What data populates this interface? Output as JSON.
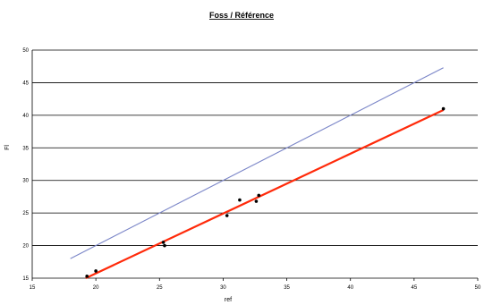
{
  "chart_data": {
    "type": "scatter",
    "title": "Foss / Référence",
    "xlabel": "ref",
    "ylabel": "Fl",
    "xlim": [
      15,
      50
    ],
    "ylim": [
      15,
      50
    ],
    "x_ticks": [
      "15",
      "20",
      "25",
      "30",
      "35",
      "40",
      "45",
      "50"
    ],
    "y_ticks": [
      "15",
      "20",
      "25",
      "30",
      "35",
      "40",
      "45",
      "50"
    ],
    "grid": true,
    "legend": "none",
    "series": [
      {
        "type": "scatter",
        "color": "#000000",
        "points": [
          {
            "x": 19.3,
            "y": 15.3
          },
          {
            "x": 20.0,
            "y": 16.1
          },
          {
            "x": 25.3,
            "y": 20.5
          },
          {
            "x": 25.4,
            "y": 20.0
          },
          {
            "x": 30.3,
            "y": 24.6
          },
          {
            "x": 31.3,
            "y": 27.0
          },
          {
            "x": 32.6,
            "y": 26.8
          },
          {
            "x": 32.8,
            "y": 27.7
          },
          {
            "x": 47.3,
            "y": 41.0
          }
        ]
      },
      {
        "type": "line",
        "color": "#ff2a0a",
        "points": [
          {
            "x": 19.2,
            "y": 15.0
          },
          {
            "x": 47.3,
            "y": 40.8
          }
        ]
      },
      {
        "type": "line",
        "color": "#7b86c8",
        "points": [
          {
            "x": 18.0,
            "y": 18.0
          },
          {
            "x": 47.3,
            "y": 47.3
          }
        ]
      }
    ]
  }
}
